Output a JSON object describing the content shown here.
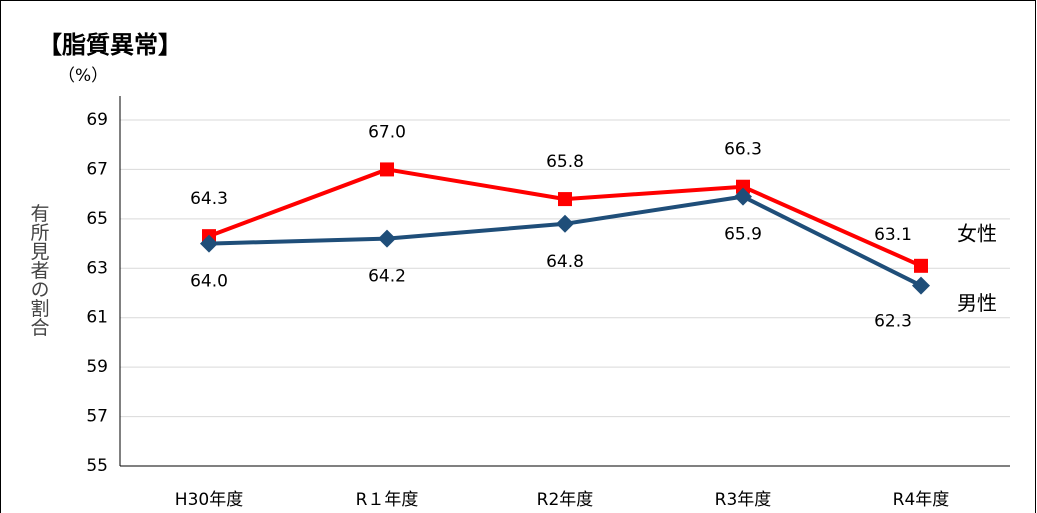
{
  "chart_data": {
    "type": "line",
    "title": "【脂質異常】",
    "y_unit": "（%）",
    "y_label": "有所見者の割合",
    "categories": [
      "H30年度",
      "R１年度",
      "R2年度",
      "R3年度",
      "R4年度"
    ],
    "series": [
      {
        "name": "女性",
        "color": "#ff0000",
        "marker": "square",
        "values": [
          64.3,
          67.0,
          65.8,
          66.3,
          63.1
        ],
        "value_labels": [
          "64.3",
          "67.0",
          "65.8",
          "66.3",
          "63.1"
        ]
      },
      {
        "name": "男性",
        "color": "#1f4e79",
        "marker": "diamond",
        "values": [
          64.0,
          64.2,
          64.8,
          65.9,
          62.3
        ],
        "value_labels": [
          "64.0",
          "64.2",
          "64.8",
          "65.9",
          "62.3"
        ]
      }
    ],
    "ylim": [
      55,
      69
    ],
    "yticks": [
      55,
      57,
      59,
      61,
      63,
      65,
      67,
      69
    ],
    "grid": true
  }
}
